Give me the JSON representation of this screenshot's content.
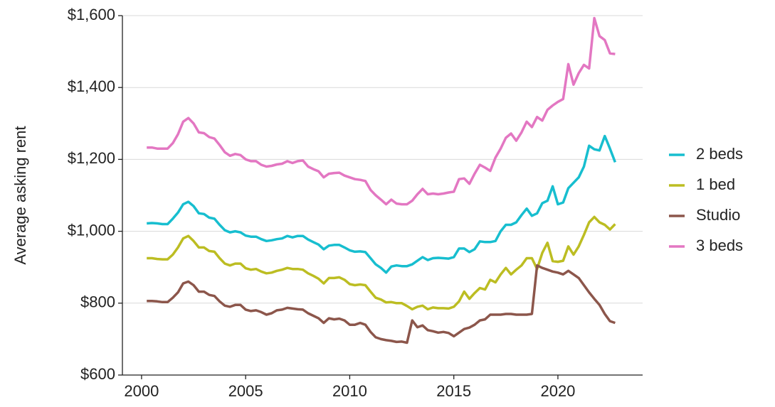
{
  "chart_data": {
    "type": "line",
    "y_label": "Average asking rent",
    "x": [
      2000.25,
      2000.5,
      2000.75,
      2001,
      2001.25,
      2001.5,
      2001.75,
      2002,
      2002.25,
      2002.5,
      2002.75,
      2003,
      2003.25,
      2003.5,
      2003.75,
      2004,
      2004.25,
      2004.5,
      2004.75,
      2005,
      2005.25,
      2005.5,
      2005.75,
      2006,
      2006.25,
      2006.5,
      2006.75,
      2007,
      2007.25,
      2007.5,
      2007.75,
      2008,
      2008.25,
      2008.5,
      2008.75,
      2009,
      2009.25,
      2009.5,
      2009.75,
      2010,
      2010.25,
      2010.5,
      2010.75,
      2011,
      2011.25,
      2011.5,
      2011.75,
      2012,
      2012.25,
      2012.5,
      2012.75,
      2013,
      2013.25,
      2013.5,
      2013.75,
      2014,
      2014.25,
      2014.5,
      2014.75,
      2015,
      2015.25,
      2015.5,
      2015.75,
      2016,
      2016.25,
      2016.5,
      2016.75,
      2017,
      2017.25,
      2017.5,
      2017.75,
      2018,
      2018.25,
      2018.5,
      2018.75,
      2019,
      2019.25,
      2019.5,
      2019.75,
      2020,
      2020.25,
      2020.5,
      2020.75,
      2021,
      2021.25,
      2021.5,
      2021.75,
      2022,
      2022.25,
      2022.5,
      2022.75
    ],
    "series": [
      {
        "name": "2 beds",
        "color": "#17becf",
        "values": [
          1022,
          1023,
          1022,
          1020,
          1020,
          1035,
          1052,
          1075,
          1082,
          1070,
          1050,
          1048,
          1038,
          1035,
          1018,
          1003,
          997,
          1000,
          997,
          988,
          985,
          985,
          978,
          973,
          975,
          978,
          980,
          987,
          983,
          987,
          987,
          977,
          970,
          963,
          950,
          960,
          962,
          962,
          955,
          947,
          943,
          944,
          942,
          925,
          908,
          898,
          885,
          902,
          905,
          903,
          903,
          908,
          918,
          928,
          920,
          925,
          926,
          925,
          924,
          928,
          952,
          952,
          942,
          950,
          972,
          970,
          970,
          973,
          1000,
          1018,
          1018,
          1025,
          1045,
          1063,
          1043,
          1050,
          1078,
          1085,
          1125,
          1075,
          1080,
          1120,
          1135,
          1150,
          1180,
          1238,
          1228,
          1225,
          1265,
          1230,
          1192
        ]
      },
      {
        "name": "1 bed",
        "color": "#bcbd22",
        "values": [
          925,
          925,
          923,
          922,
          922,
          935,
          955,
          980,
          987,
          973,
          955,
          955,
          945,
          943,
          925,
          910,
          905,
          910,
          910,
          897,
          893,
          895,
          888,
          883,
          885,
          890,
          893,
          898,
          895,
          895,
          893,
          883,
          876,
          868,
          855,
          870,
          870,
          872,
          865,
          853,
          850,
          852,
          850,
          832,
          815,
          810,
          802,
          803,
          800,
          800,
          792,
          783,
          790,
          793,
          783,
          788,
          786,
          786,
          785,
          790,
          805,
          832,
          812,
          828,
          842,
          838,
          865,
          858,
          880,
          898,
          880,
          893,
          905,
          925,
          925,
          895,
          940,
          968,
          917,
          915,
          918,
          958,
          935,
          958,
          990,
          1025,
          1040,
          1025,
          1018,
          1005,
          1020
        ]
      },
      {
        "name": "Studio",
        "color": "#8c564b",
        "values": [
          806,
          806,
          805,
          803,
          803,
          815,
          830,
          855,
          860,
          850,
          832,
          832,
          823,
          820,
          805,
          793,
          790,
          795,
          795,
          782,
          778,
          780,
          775,
          768,
          772,
          780,
          782,
          787,
          785,
          783,
          782,
          772,
          765,
          758,
          745,
          758,
          755,
          757,
          752,
          740,
          740,
          745,
          740,
          720,
          705,
          700,
          697,
          695,
          692,
          693,
          690,
          752,
          733,
          738,
          725,
          722,
          718,
          720,
          717,
          708,
          718,
          728,
          732,
          740,
          752,
          755,
          768,
          768,
          768,
          770,
          770,
          768,
          768,
          768,
          770,
          905,
          898,
          893,
          888,
          885,
          880,
          890,
          880,
          870,
          850,
          830,
          812,
          795,
          770,
          750,
          745
        ]
      },
      {
        "name": "3 beds",
        "color": "#e377c2",
        "values": [
          1233,
          1233,
          1230,
          1230,
          1230,
          1245,
          1270,
          1305,
          1315,
          1300,
          1275,
          1273,
          1262,
          1258,
          1240,
          1220,
          1210,
          1215,
          1212,
          1200,
          1195,
          1195,
          1185,
          1180,
          1182,
          1186,
          1188,
          1195,
          1190,
          1195,
          1197,
          1180,
          1173,
          1167,
          1150,
          1160,
          1162,
          1163,
          1155,
          1150,
          1145,
          1143,
          1140,
          1115,
          1100,
          1088,
          1075,
          1088,
          1077,
          1075,
          1075,
          1085,
          1103,
          1118,
          1103,
          1105,
          1103,
          1105,
          1108,
          1110,
          1145,
          1147,
          1132,
          1160,
          1185,
          1177,
          1168,
          1205,
          1230,
          1260,
          1272,
          1252,
          1275,
          1305,
          1290,
          1318,
          1308,
          1338,
          1350,
          1360,
          1368,
          1465,
          1408,
          1440,
          1463,
          1453,
          1593,
          1543,
          1532,
          1495,
          1493
        ]
      }
    ],
    "xlim": [
      1999.08,
      2024.07
    ],
    "xticks": [
      2000,
      2005,
      2010,
      2015,
      2020
    ],
    "ylim": [
      600,
      1600
    ],
    "yticks": [
      {
        "value": 600,
        "label": "$600"
      },
      {
        "value": 800,
        "label": "$800"
      },
      {
        "value": 1000,
        "label": "$1,000"
      },
      {
        "value": 1200,
        "label": "$1,200"
      },
      {
        "value": 1400,
        "label": "$1,400"
      },
      {
        "value": 1600,
        "label": "$1,600"
      }
    ],
    "grid": true,
    "legend": "right"
  }
}
